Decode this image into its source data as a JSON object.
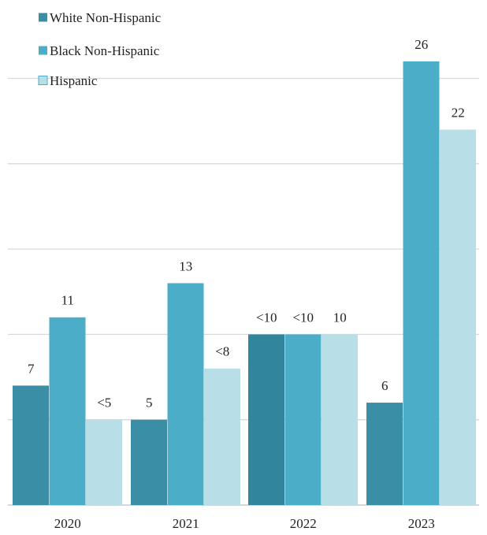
{
  "chart_data": {
    "type": "bar",
    "categories": [
      "2020",
      "2021",
      "2022",
      "2023"
    ],
    "series": [
      {
        "name": "White Non-Hispanic",
        "color": "#3a8fa6",
        "values": [
          7,
          5,
          10,
          6
        ],
        "labels": [
          "7",
          "5",
          "<10",
          "6"
        ]
      },
      {
        "name": "Black Non-Hispanic",
        "color": "#4badc8",
        "values": [
          11,
          13,
          10,
          26
        ],
        "labels": [
          "11",
          "13",
          "<10",
          "26"
        ]
      },
      {
        "name": "Hispanic",
        "color": "#b8dee8",
        "values": [
          5,
          8,
          10,
          22
        ],
        "labels": [
          "<5",
          "<8",
          "10",
          "22"
        ]
      }
    ],
    "ylim": [
      0,
      25
    ],
    "grid": true,
    "legend_placement": "top-left"
  }
}
